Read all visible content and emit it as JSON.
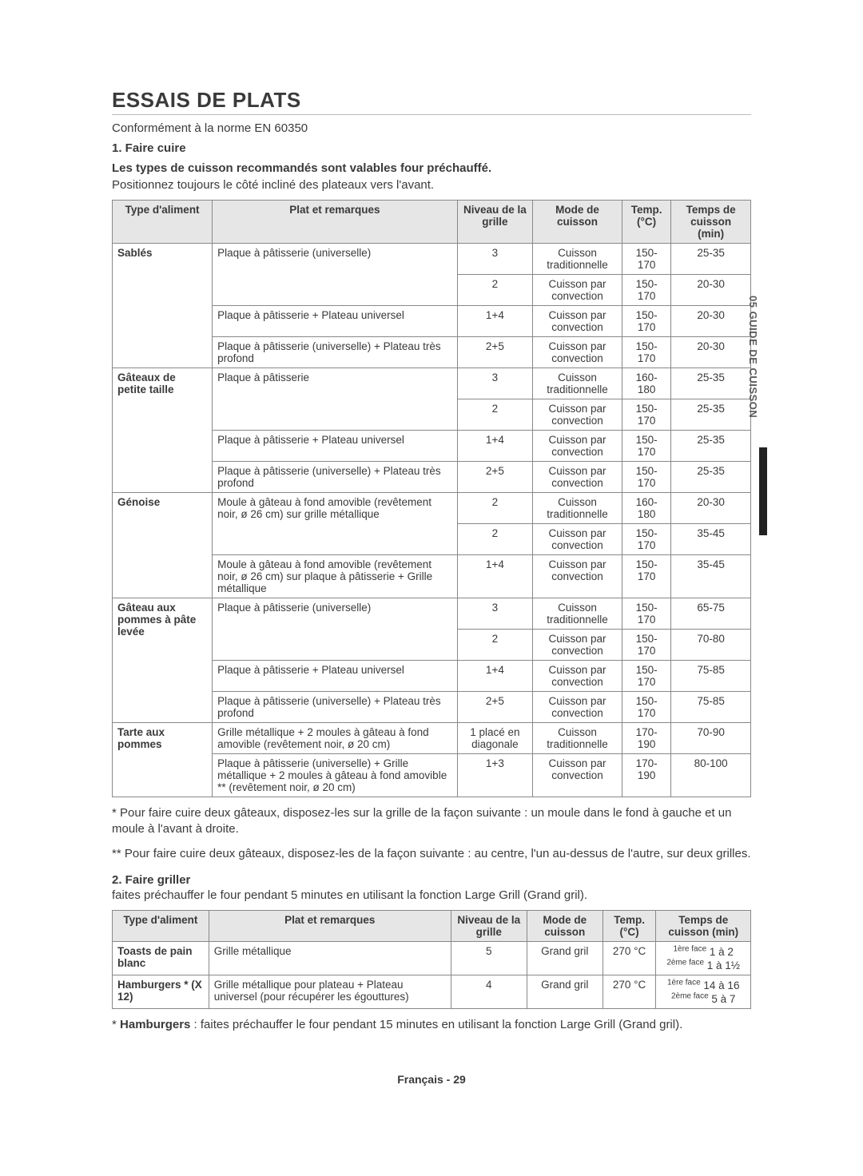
{
  "sideTab": "05  GUIDE DE CUISSON",
  "title": "ESSAIS DE PLATS",
  "intro": {
    "line1": "Conformément à la norme EN 60350",
    "h1": "1. Faire cuire",
    "h1sub": "Les types de cuisson recommandés sont valables four préchauffé.",
    "line2": "Positionnez toujours le côté incliné des plateaux vers l'avant."
  },
  "table1": {
    "headers": [
      "Type d'aliment",
      "Plat et remarques",
      "Niveau de la grille",
      "Mode de cuisson",
      "Temp. (°C)",
      "Temps de cuisson (min)"
    ],
    "groups": [
      {
        "food": "Sablés",
        "rows": [
          {
            "plate": "Plaque à pâtisserie (universelle)",
            "level": "3",
            "mode": "Cuisson traditionnelle",
            "temp": "150-170",
            "time": "25-35",
            "merge": 2
          },
          {
            "plate": "",
            "level": "2",
            "mode": "Cuisson par convection",
            "temp": "150-170",
            "time": "20-30"
          },
          {
            "plate": "Plaque à pâtisserie + Plateau universel",
            "level": "1+4",
            "mode": "Cuisson par convection",
            "temp": "150-170",
            "time": "20-30"
          },
          {
            "plate": "Plaque à pâtisserie (universelle) + Plateau très profond",
            "level": "2+5",
            "mode": "Cuisson par convection",
            "temp": "150-170",
            "time": "20-30"
          }
        ]
      },
      {
        "food": "Gâteaux de petite taille",
        "rows": [
          {
            "plate": "Plaque à pâtisserie",
            "level": "3",
            "mode": "Cuisson traditionnelle",
            "temp": "160-180",
            "time": "25-35",
            "merge": 2
          },
          {
            "plate": "",
            "level": "2",
            "mode": "Cuisson par convection",
            "temp": "150-170",
            "time": "25-35"
          },
          {
            "plate": "Plaque à pâtisserie + Plateau universel",
            "level": "1+4",
            "mode": "Cuisson par convection",
            "temp": "150-170",
            "time": "25-35"
          },
          {
            "plate": "Plaque à pâtisserie (universelle) + Plateau très profond",
            "level": "2+5",
            "mode": "Cuisson par convection",
            "temp": "150-170",
            "time": "25-35"
          }
        ]
      },
      {
        "food": "Génoise",
        "rows": [
          {
            "plate": "Moule à gâteau à fond amovible (revêtement noir, ø 26 cm) sur grille métallique",
            "level": "2",
            "mode": "Cuisson traditionnelle",
            "temp": "160-180",
            "time": "20-30",
            "merge": 2,
            "split": true,
            "level2": "2",
            "mode2": "Cuisson par convection",
            "temp2": "150-170",
            "time2": "35-45"
          },
          {
            "plate": "Moule à gâteau à fond amovible (revêtement noir, ø 26 cm) sur plaque à pâtisserie + Grille métallique",
            "level": "1+4",
            "mode": "Cuisson par convection",
            "temp": "150-170",
            "time": "35-45"
          }
        ]
      },
      {
        "food": "Gâteau aux pommes à pâte levée",
        "rows": [
          {
            "plate": "Plaque à pâtisserie (universelle)",
            "level": "3",
            "mode": "Cuisson traditionnelle",
            "temp": "150-170",
            "time": "65-75",
            "merge": 2
          },
          {
            "plate": "",
            "level": "2",
            "mode": "Cuisson par convection",
            "temp": "150-170",
            "time": "70-80"
          },
          {
            "plate": "Plaque à pâtisserie + Plateau universel",
            "level": "1+4",
            "mode": "Cuisson par convection",
            "temp": "150-170",
            "time": "75-85"
          },
          {
            "plate": "Plaque à pâtisserie (universelle) + Plateau très profond",
            "level": "2+5",
            "mode": "Cuisson par convection",
            "temp": "150-170",
            "time": "75-85"
          }
        ]
      },
      {
        "food": "Tarte aux pommes",
        "rows": [
          {
            "plate": "Grille métallique + 2 moules à gâteau à fond amovible (revêtement noir, ø 20 cm)",
            "level": "1 placé en diagonale",
            "mode": "Cuisson traditionnelle",
            "temp": "170-190",
            "time": "70-90"
          },
          {
            "plate": "Plaque à pâtisserie (universelle) + Grille métallique + 2 moules à gâteau à fond amovible ** (revêtement noir, ø 20 cm)",
            "level": "1+3",
            "mode": "Cuisson par convection",
            "temp": "170-190",
            "time": "80-100"
          }
        ]
      }
    ]
  },
  "foot1a": "* Pour faire cuire deux gâteaux, disposez-les sur la grille de la façon suivante : un moule dans le fond à gauche et un moule à l'avant à droite.",
  "foot1b": "** Pour faire cuire deux gâteaux, disposez-les de la façon suivante : au centre, l'un au-dessus de l'autre, sur deux grilles.",
  "grill": {
    "h": "2. Faire griller",
    "sub": "faites préchauffer le four pendant 5 minutes en utilisant la fonction Large Grill (Grand gril)."
  },
  "table2": {
    "headers": [
      "Type d'aliment",
      "Plat et remarques",
      "Niveau de la grille",
      "Mode de cuisson",
      "Temp. (°C)",
      "Temps de cuisson (min)"
    ],
    "rows": [
      {
        "food": "Toasts de pain blanc",
        "plate": "Grille métallique",
        "level": "5",
        "mode": "Grand gril",
        "temp": "270 °C",
        "time": "1ère face 1 à 2\n2ème face 1 à 1½"
      },
      {
        "food": "Hamburgers * (X 12)",
        "plate": "Grille métallique pour plateau + Plateau universel (pour récupérer les égouttures)",
        "level": "4",
        "mode": "Grand gril",
        "temp": "270 °C",
        "time": "1ère face 14 à 16\n2ème face 5 à 7"
      }
    ]
  },
  "foot2": "* Hamburgers : faites préchauffer le four pendant 15 minutes en utilisant la fonction Large Grill (Grand gril).",
  "pageFooter": "Français - 29"
}
